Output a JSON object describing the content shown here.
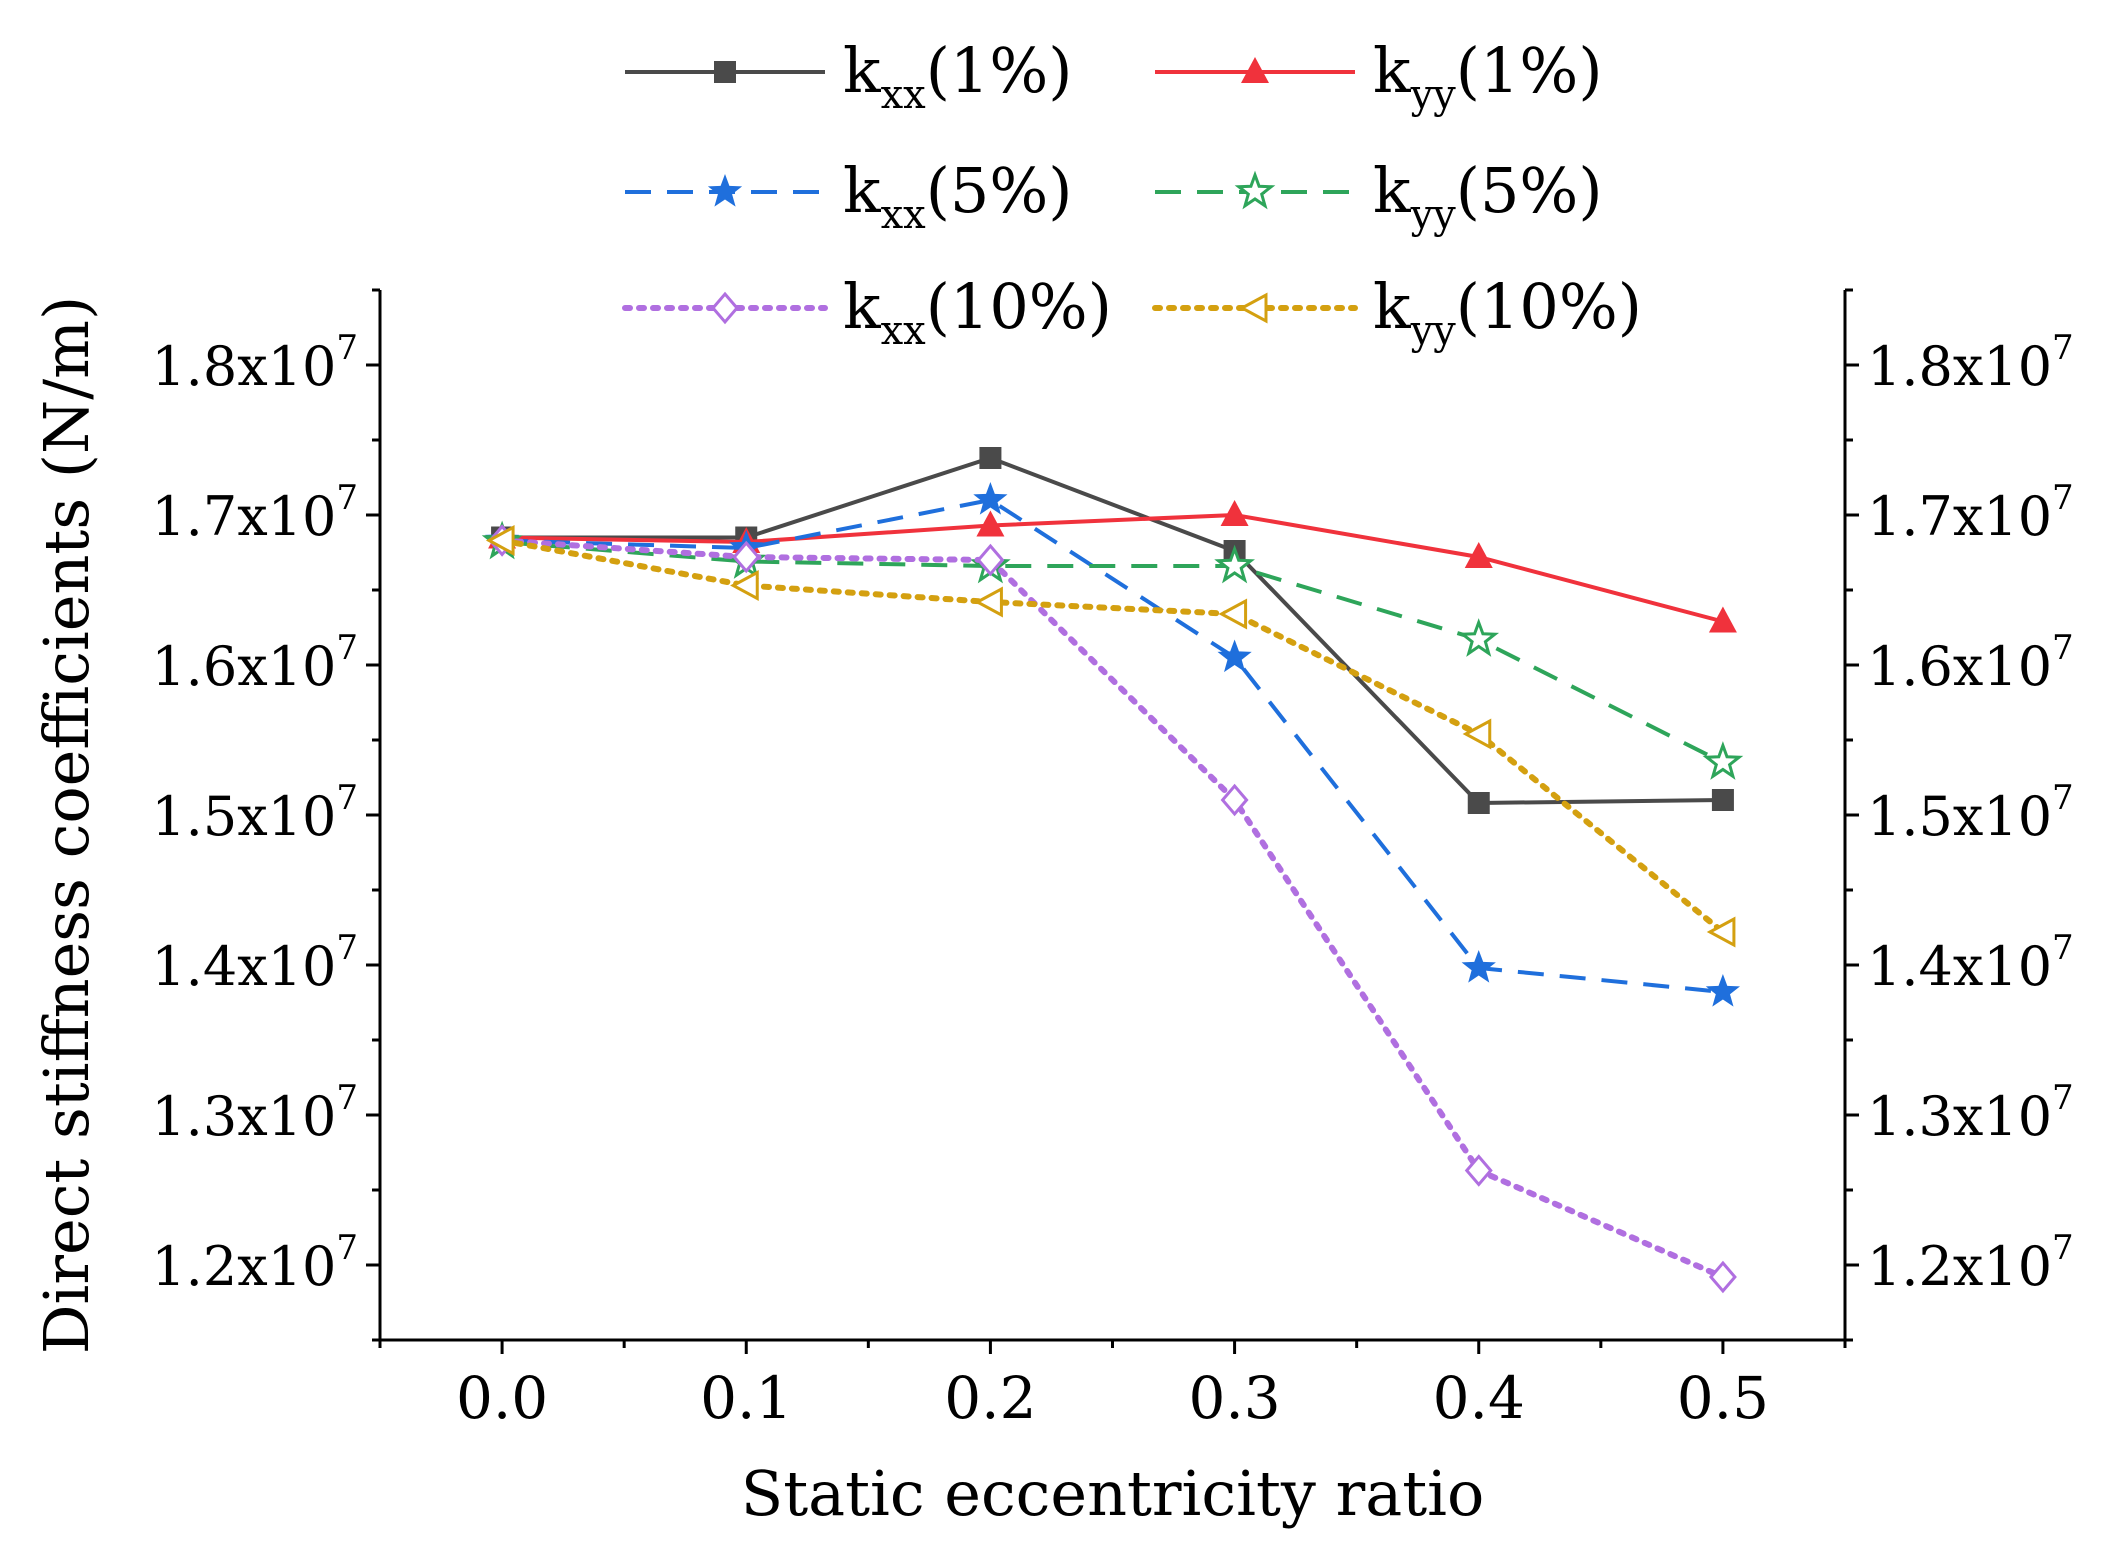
{
  "chart_data": {
    "type": "line",
    "title": "",
    "xlabel": "Static eccentricity ratio",
    "ylabel": "Direct stiffness coefficients (N/m)",
    "x": [
      0.0,
      0.1,
      0.2,
      0.3,
      0.4,
      0.5
    ],
    "x_tick_labels": [
      "0.0",
      "0.1",
      "0.2",
      "0.3",
      "0.4",
      "0.5"
    ],
    "xlim": [
      -0.05,
      0.55
    ],
    "ylim": [
      11500000,
      18500000
    ],
    "y_ticks": [
      12000000,
      13000000,
      14000000,
      15000000,
      16000000,
      17000000,
      18000000
    ],
    "y_tick_labels": [
      {
        "base": "1.2x10",
        "exp": "7"
      },
      {
        "base": "1.3x10",
        "exp": "7"
      },
      {
        "base": "1.4x10",
        "exp": "7"
      },
      {
        "base": "1.5x10",
        "exp": "7"
      },
      {
        "base": "1.6x10",
        "exp": "7"
      },
      {
        "base": "1.7x10",
        "exp": "7"
      },
      {
        "base": "1.8x10",
        "exp": "7"
      }
    ],
    "right_axis_mirror": true,
    "grid": false,
    "legend_position": "top",
    "series": [
      {
        "name": "kxx(1%)",
        "label": {
          "main": "k",
          "sub": "xx",
          "tail": "(1%)"
        },
        "color": "#4a4a4a",
        "dash": "solid",
        "marker": "square-filled",
        "values": [
          16850000,
          16850000,
          17380000,
          16760000,
          15080000,
          15100000
        ]
      },
      {
        "name": "kyy(1%)",
        "label": {
          "main": "k",
          "sub": "yy",
          "tail": "(1%)"
        },
        "color": "#f0323c",
        "dash": "solid",
        "marker": "triangle-filled",
        "values": [
          16850000,
          16820000,
          16930000,
          17000000,
          16720000,
          16290000
        ]
      },
      {
        "name": "kxx(5%)",
        "label": {
          "main": "k",
          "sub": "xx",
          "tail": "(5%)"
        },
        "color": "#1f6fdc",
        "dash": "dashed",
        "marker": "star-filled",
        "values": [
          16830000,
          16780000,
          17100000,
          16050000,
          13980000,
          13820000
        ]
      },
      {
        "name": "kyy(5%)",
        "label": {
          "main": "k",
          "sub": "yy",
          "tail": "(5%)"
        },
        "color": "#2ea55a",
        "dash": "dashed",
        "marker": "star-open",
        "values": [
          16820000,
          16690000,
          16660000,
          16660000,
          16170000,
          15350000
        ]
      },
      {
        "name": "kxx(10%)",
        "label": {
          "main": "k",
          "sub": "xx",
          "tail": "(10%)"
        },
        "color": "#b06fe0",
        "dash": "dotted",
        "marker": "diamond-open",
        "values": [
          16830000,
          16720000,
          16700000,
          15100000,
          12630000,
          11920000
        ]
      },
      {
        "name": "kyy(10%)",
        "label": {
          "main": "k",
          "sub": "yy",
          "tail": "(10%)"
        },
        "color": "#d4a010",
        "dash": "dotted",
        "marker": "triangle-left-open",
        "values": [
          16830000,
          16530000,
          16420000,
          16340000,
          15540000,
          14220000
        ]
      }
    ]
  }
}
